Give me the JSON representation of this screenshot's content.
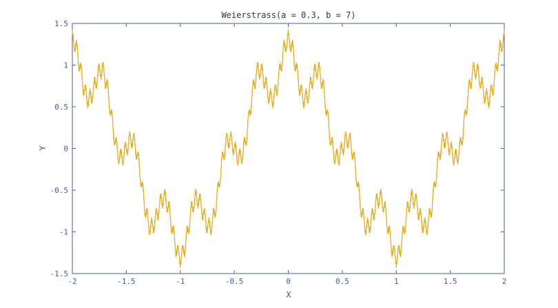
{
  "chart_data": {
    "type": "line",
    "title": "Weierstrass(a = 0.3, b = 7)",
    "xlabel": "X",
    "ylabel": "Y",
    "xlim": [
      -2,
      2
    ],
    "ylim": [
      -1.5,
      1.5
    ],
    "xticks": [
      -2,
      -1.5,
      -1,
      -0.5,
      0,
      0.5,
      1,
      1.5,
      2
    ],
    "xtick_labels": [
      "-2",
      "-1.5",
      "-1",
      "-0.5",
      "0",
      "0.5",
      "1",
      "1.5",
      "2"
    ],
    "yticks": [
      -1.5,
      -1,
      -0.5,
      0,
      0.5,
      1,
      1.5
    ],
    "ytick_labels": [
      "-1.5",
      "-1",
      "-0.5",
      "0",
      "0.5",
      "1",
      "1.5"
    ],
    "grid": false,
    "series": [
      {
        "function": "sum_{n=0..5} 0.3^n * cos(7^n * pi * x)",
        "a": 0.3,
        "b": 7,
        "terms": 6,
        "x_range": [
          -2,
          2
        ],
        "samples": 2000,
        "color": "#e5ae21"
      }
    ],
    "colors": {
      "axis": "#4a55b5",
      "line": "#e5ae21"
    }
  }
}
